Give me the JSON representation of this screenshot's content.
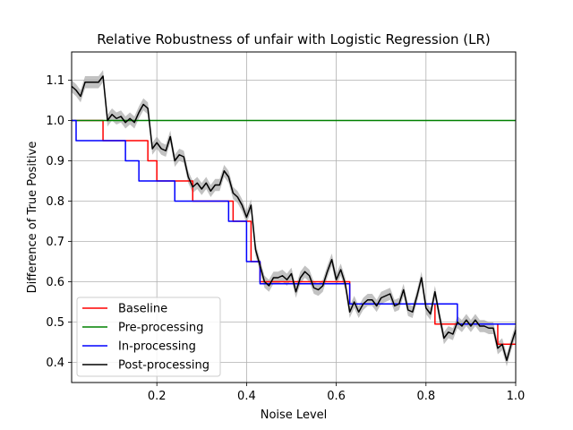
{
  "chart_data": {
    "type": "line",
    "title": "Relative Robustness of unfair with Logistic Regression (LR)",
    "xlabel": "Noise Level",
    "ylabel": "Difference of True Positive",
    "xlim": [
      0.01,
      1.0
    ],
    "ylim": [
      0.35,
      1.17
    ],
    "xticks": [
      0.2,
      0.4,
      0.6,
      0.8,
      1.0
    ],
    "xtick_labels": [
      "0.2",
      "0.4",
      "0.6",
      "0.8",
      "1.0"
    ],
    "yticks": [
      0.4,
      0.5,
      0.6,
      0.7,
      0.8,
      0.9,
      1.0,
      1.1
    ],
    "ytick_labels": [
      "0.4",
      "0.5",
      "0.6",
      "0.7",
      "0.8",
      "0.9",
      "1.0",
      "1.1"
    ],
    "grid": true,
    "legend_position": "lower-left",
    "series": [
      {
        "name": "Baseline",
        "color": "#ff0000",
        "step": true,
        "points": [
          [
            0.01,
            1.0
          ],
          [
            0.08,
            1.0
          ],
          [
            0.08,
            0.95
          ],
          [
            0.18,
            0.95
          ],
          [
            0.18,
            0.9
          ],
          [
            0.2,
            0.9
          ],
          [
            0.2,
            0.85
          ],
          [
            0.28,
            0.85
          ],
          [
            0.28,
            0.8
          ],
          [
            0.37,
            0.8
          ],
          [
            0.37,
            0.75
          ],
          [
            0.41,
            0.75
          ],
          [
            0.41,
            0.65
          ],
          [
            0.43,
            0.65
          ],
          [
            0.43,
            0.6
          ],
          [
            0.63,
            0.6
          ],
          [
            0.63,
            0.545
          ],
          [
            0.82,
            0.545
          ],
          [
            0.82,
            0.495
          ],
          [
            0.96,
            0.495
          ],
          [
            0.96,
            0.445
          ],
          [
            1.0,
            0.445
          ]
        ]
      },
      {
        "name": "Pre-processing",
        "color": "#008000",
        "step": false,
        "points": [
          [
            0.01,
            1.0
          ],
          [
            1.0,
            1.0
          ]
        ]
      },
      {
        "name": "In-processing",
        "color": "#0000ff",
        "step": true,
        "points": [
          [
            0.01,
            1.0
          ],
          [
            0.02,
            1.0
          ],
          [
            0.02,
            0.95
          ],
          [
            0.13,
            0.95
          ],
          [
            0.13,
            0.9
          ],
          [
            0.16,
            0.9
          ],
          [
            0.16,
            0.85
          ],
          [
            0.24,
            0.85
          ],
          [
            0.24,
            0.8
          ],
          [
            0.36,
            0.8
          ],
          [
            0.36,
            0.75
          ],
          [
            0.4,
            0.75
          ],
          [
            0.4,
            0.65
          ],
          [
            0.43,
            0.65
          ],
          [
            0.43,
            0.595
          ],
          [
            0.63,
            0.595
          ],
          [
            0.63,
            0.545
          ],
          [
            0.87,
            0.545
          ],
          [
            0.87,
            0.495
          ],
          [
            1.0,
            0.495
          ]
        ]
      },
      {
        "name": "Post-processing",
        "color": "#000000",
        "step": false,
        "band": 0.015,
        "band_color": "#999999",
        "points": [
          [
            0.01,
            1.085
          ],
          [
            0.02,
            1.075
          ],
          [
            0.03,
            1.06
          ],
          [
            0.04,
            1.095
          ],
          [
            0.05,
            1.095
          ],
          [
            0.06,
            1.095
          ],
          [
            0.07,
            1.095
          ],
          [
            0.08,
            1.11
          ],
          [
            0.09,
            1.0
          ],
          [
            0.1,
            1.015
          ],
          [
            0.11,
            1.005
          ],
          [
            0.12,
            1.01
          ],
          [
            0.13,
            0.995
          ],
          [
            0.14,
            1.005
          ],
          [
            0.15,
            0.995
          ],
          [
            0.16,
            1.02
          ],
          [
            0.17,
            1.04
          ],
          [
            0.18,
            1.03
          ],
          [
            0.19,
            0.93
          ],
          [
            0.2,
            0.945
          ],
          [
            0.21,
            0.93
          ],
          [
            0.22,
            0.925
          ],
          [
            0.23,
            0.96
          ],
          [
            0.24,
            0.9
          ],
          [
            0.25,
            0.915
          ],
          [
            0.26,
            0.91
          ],
          [
            0.27,
            0.86
          ],
          [
            0.28,
            0.835
          ],
          [
            0.29,
            0.845
          ],
          [
            0.3,
            0.83
          ],
          [
            0.31,
            0.845
          ],
          [
            0.32,
            0.825
          ],
          [
            0.33,
            0.84
          ],
          [
            0.34,
            0.84
          ],
          [
            0.35,
            0.875
          ],
          [
            0.36,
            0.86
          ],
          [
            0.37,
            0.82
          ],
          [
            0.38,
            0.81
          ],
          [
            0.39,
            0.79
          ],
          [
            0.4,
            0.76
          ],
          [
            0.41,
            0.79
          ],
          [
            0.42,
            0.68
          ],
          [
            0.43,
            0.64
          ],
          [
            0.44,
            0.6
          ],
          [
            0.45,
            0.59
          ],
          [
            0.46,
            0.61
          ],
          [
            0.47,
            0.61
          ],
          [
            0.48,
            0.615
          ],
          [
            0.49,
            0.605
          ],
          [
            0.5,
            0.62
          ],
          [
            0.51,
            0.575
          ],
          [
            0.52,
            0.61
          ],
          [
            0.53,
            0.625
          ],
          [
            0.54,
            0.615
          ],
          [
            0.55,
            0.585
          ],
          [
            0.56,
            0.58
          ],
          [
            0.57,
            0.59
          ],
          [
            0.58,
            0.625
          ],
          [
            0.59,
            0.655
          ],
          [
            0.6,
            0.605
          ],
          [
            0.61,
            0.63
          ],
          [
            0.62,
            0.595
          ],
          [
            0.63,
            0.525
          ],
          [
            0.64,
            0.55
          ],
          [
            0.65,
            0.525
          ],
          [
            0.66,
            0.545
          ],
          [
            0.67,
            0.555
          ],
          [
            0.68,
            0.555
          ],
          [
            0.69,
            0.54
          ],
          [
            0.7,
            0.56
          ],
          [
            0.71,
            0.565
          ],
          [
            0.72,
            0.57
          ],
          [
            0.73,
            0.54
          ],
          [
            0.74,
            0.545
          ],
          [
            0.75,
            0.58
          ],
          [
            0.76,
            0.53
          ],
          [
            0.77,
            0.525
          ],
          [
            0.78,
            0.565
          ],
          [
            0.79,
            0.61
          ],
          [
            0.8,
            0.535
          ],
          [
            0.81,
            0.52
          ],
          [
            0.82,
            0.575
          ],
          [
            0.83,
            0.515
          ],
          [
            0.84,
            0.46
          ],
          [
            0.85,
            0.475
          ],
          [
            0.86,
            0.47
          ],
          [
            0.87,
            0.5
          ],
          [
            0.88,
            0.49
          ],
          [
            0.89,
            0.505
          ],
          [
            0.9,
            0.49
          ],
          [
            0.91,
            0.505
          ],
          [
            0.92,
            0.49
          ],
          [
            0.93,
            0.49
          ],
          [
            0.94,
            0.485
          ],
          [
            0.95,
            0.485
          ],
          [
            0.96,
            0.435
          ],
          [
            0.97,
            0.445
          ],
          [
            0.98,
            0.405
          ],
          [
            0.99,
            0.445
          ],
          [
            1.0,
            0.48
          ]
        ]
      }
    ]
  }
}
